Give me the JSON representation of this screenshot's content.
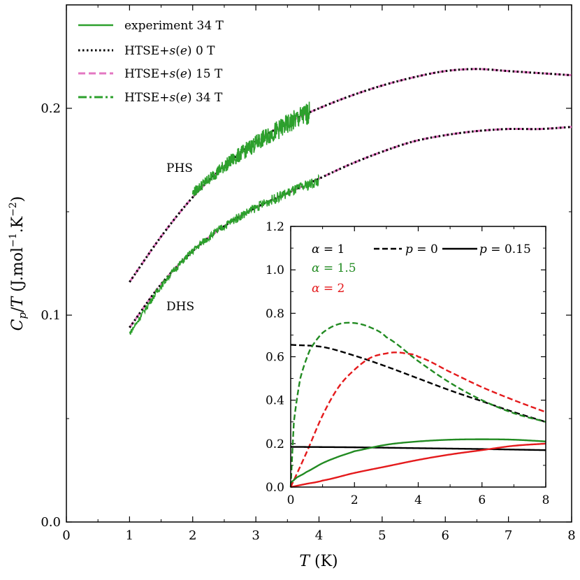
{
  "chart_data": [
    {
      "type": "line",
      "xlabel": "T (K)",
      "ylabel": "Cp/T (J.mol−1.K−2)",
      "xlim": [
        0,
        8
      ],
      "ylim": [
        0,
        0.2
      ],
      "x_ticks": [
        "0",
        "1",
        "2",
        "3",
        "4",
        "5",
        "6",
        "7",
        "8"
      ],
      "y_ticks": [
        "0.0",
        "0.1",
        "0.2"
      ],
      "legend": [
        {
          "label": "experiment 34 T",
          "color": "#2ca02c",
          "style": "solid"
        },
        {
          "label": "HTSE+s(e) 0 T",
          "color": "#000000",
          "style": "dotted"
        },
        {
          "label": "HTSE+s(e) 15 T",
          "color": "#e377c2",
          "style": "dashed"
        },
        {
          "label": "HTSE+s(e) 34 T",
          "color": "#2ca02c",
          "style": "dashdot"
        }
      ],
      "legend_position": "top-left",
      "annotations": [
        "PHS",
        "DHS"
      ],
      "series": [
        {
          "annotation": "PHS",
          "kind": "model",
          "x": [
            1.0,
            1.5,
            2.0,
            2.5,
            3.0,
            3.5,
            4.0,
            4.5,
            5.0,
            5.5,
            6.0,
            6.5,
            7.0,
            7.5,
            8.0
          ],
          "y": [
            0.116,
            0.138,
            0.157,
            0.172,
            0.184,
            0.193,
            0.2,
            0.206,
            0.211,
            0.215,
            0.218,
            0.219,
            0.218,
            0.217,
            0.216
          ]
        },
        {
          "annotation": "DHS",
          "kind": "model",
          "x": [
            1.0,
            1.5,
            2.0,
            2.5,
            3.0,
            3.5,
            4.0,
            4.5,
            5.0,
            5.5,
            6.0,
            6.5,
            7.0,
            7.5,
            8.0
          ],
          "y": [
            0.094,
            0.115,
            0.131,
            0.143,
            0.152,
            0.159,
            0.166,
            0.173,
            0.179,
            0.184,
            0.187,
            0.189,
            0.19,
            0.19,
            0.191
          ]
        },
        {
          "annotation": "PHS",
          "kind": "experiment 34 T",
          "x": [
            2.0,
            2.5,
            3.0,
            3.5,
            3.85
          ],
          "y": [
            0.159,
            0.172,
            0.183,
            0.192,
            0.198
          ]
        },
        {
          "annotation": "DHS",
          "kind": "experiment 34 T",
          "x": [
            1.0,
            1.5,
            2.0,
            2.5,
            3.0,
            3.5,
            4.0
          ],
          "y": [
            0.091,
            0.114,
            0.131,
            0.143,
            0.152,
            0.159,
            0.165
          ]
        }
      ]
    },
    {
      "type": "line",
      "position": "inset-bottom-right",
      "xlim": [
        0,
        8
      ],
      "ylim": [
        0,
        1.2
      ],
      "x_ticks": [
        "0",
        "2",
        "4",
        "6",
        "8"
      ],
      "y_ticks": [
        "0.0",
        "0.2",
        "0.4",
        "0.6",
        "0.8",
        "1.0",
        "1.2"
      ],
      "legend": {
        "alpha": [
          {
            "label": "α = 1",
            "color": "#000000"
          },
          {
            "label": "α = 1.5",
            "color": "#228b22"
          },
          {
            "label": "α = 2",
            "color": "#e41a1c"
          }
        ],
        "p": [
          {
            "label": "p = 0",
            "style": "dashed"
          },
          {
            "label": "p = 0.15",
            "style": "solid"
          }
        ]
      },
      "series": [
        {
          "alpha": "1",
          "p": "0",
          "color": "#000000",
          "style": "dashed",
          "x": [
            0,
            1,
            2,
            3,
            4,
            5,
            6,
            7,
            8
          ],
          "y": [
            0.655,
            0.645,
            0.605,
            0.555,
            0.5,
            0.445,
            0.395,
            0.345,
            0.3
          ]
        },
        {
          "alpha": "1.5",
          "p": "0",
          "color": "#228b22",
          "style": "dashed",
          "x": [
            0,
            0.1,
            0.3,
            0.6,
            1.0,
            1.5,
            2.0,
            2.5,
            3.0,
            4.0,
            5.0,
            6.0,
            7.0,
            8.0
          ],
          "y": [
            0.0,
            0.3,
            0.5,
            0.63,
            0.71,
            0.75,
            0.755,
            0.735,
            0.69,
            0.58,
            0.48,
            0.4,
            0.34,
            0.3
          ]
        },
        {
          "alpha": "2",
          "p": "0",
          "color": "#e41a1c",
          "style": "dashed",
          "x": [
            0,
            0.5,
            1.0,
            1.5,
            2.0,
            2.5,
            3.0,
            3.3,
            3.6,
            4.0,
            5.0,
            6.0,
            7.0,
            8.0
          ],
          "y": [
            0.0,
            0.16,
            0.33,
            0.46,
            0.54,
            0.595,
            0.615,
            0.62,
            0.615,
            0.6,
            0.53,
            0.46,
            0.4,
            0.345
          ]
        },
        {
          "alpha": "1",
          "p": "0.15",
          "color": "#000000",
          "style": "solid",
          "x": [
            0,
            2,
            4,
            6,
            8
          ],
          "y": [
            0.185,
            0.183,
            0.179,
            0.175,
            0.17
          ]
        },
        {
          "alpha": "1.5",
          "p": "0.15",
          "color": "#228b22",
          "style": "solid",
          "x": [
            0,
            0.2,
            0.5,
            1.0,
            1.5,
            2.0,
            3.0,
            4.0,
            5.0,
            6.0,
            7.0,
            8.0
          ],
          "y": [
            0.02,
            0.045,
            0.07,
            0.11,
            0.14,
            0.165,
            0.195,
            0.21,
            0.218,
            0.22,
            0.218,
            0.21
          ]
        },
        {
          "alpha": "2",
          "p": "0.15",
          "color": "#e41a1c",
          "style": "solid",
          "x": [
            0,
            0.5,
            1.0,
            2.0,
            3.0,
            4.0,
            5.0,
            6.0,
            7.0,
            8.0
          ],
          "y": [
            0.0,
            0.015,
            0.03,
            0.065,
            0.095,
            0.125,
            0.15,
            0.17,
            0.19,
            0.2
          ]
        }
      ]
    }
  ]
}
